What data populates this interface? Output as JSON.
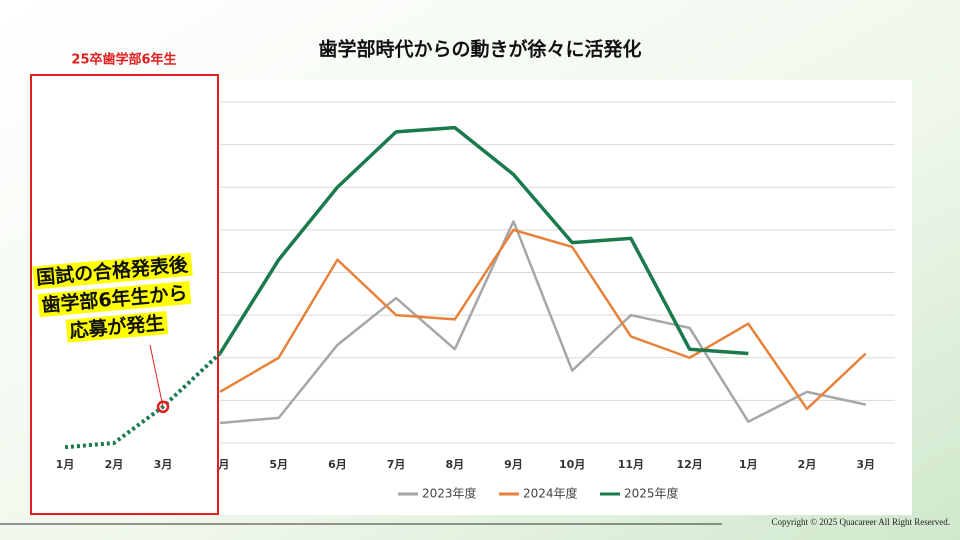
{
  "chart_data": {
    "type": "line",
    "title": "歯学部時代からの動きが徐々に活発化",
    "categories": [
      "4月",
      "5月",
      "6月",
      "7月",
      "8月",
      "9月",
      "10月",
      "11月",
      "12月",
      "1月",
      "2月",
      "3月"
    ],
    "series": [
      {
        "name": "2023年度",
        "color": "#a6a6a6",
        "values": [
          0.47,
          0.59,
          2.3,
          3.4,
          2.2,
          5.2,
          1.7,
          3.0,
          2.7,
          0.5,
          1.2,
          0.9
        ]
      },
      {
        "name": "2024年度",
        "color": "#e8823a",
        "values": [
          1.2,
          2.0,
          4.3,
          3.0,
          2.9,
          5.0,
          4.6,
          2.5,
          2.0,
          2.8,
          0.8,
          2.1
        ]
      },
      {
        "name": "2025年度",
        "color": "#1a7a4c",
        "values": [
          2.1,
          4.3,
          6.0,
          7.3,
          7.4,
          6.3,
          4.7,
          4.8,
          2.2,
          2.1,
          null,
          null
        ]
      }
    ],
    "ylim": [
      0,
      8
    ],
    "yticks": [
      0,
      1,
      2,
      3,
      4,
      5,
      6,
      7,
      8
    ],
    "grid": true,
    "ytick_labels": false,
    "legend": "bottom"
  },
  "inset": {
    "title": "25卒歯学部6年生",
    "categories": [
      "1月",
      "2月",
      "3月"
    ],
    "values": [
      -0.1,
      0,
      0.85
    ],
    "color": "#1a7a4c",
    "line_style": "dotted",
    "annotation": [
      "国試の合格発表後",
      "歯学部6年生から",
      "応募が発生"
    ],
    "annotation_point": 2
  },
  "footer": "Copyright © 2025 Quacareer All Right Reserved."
}
